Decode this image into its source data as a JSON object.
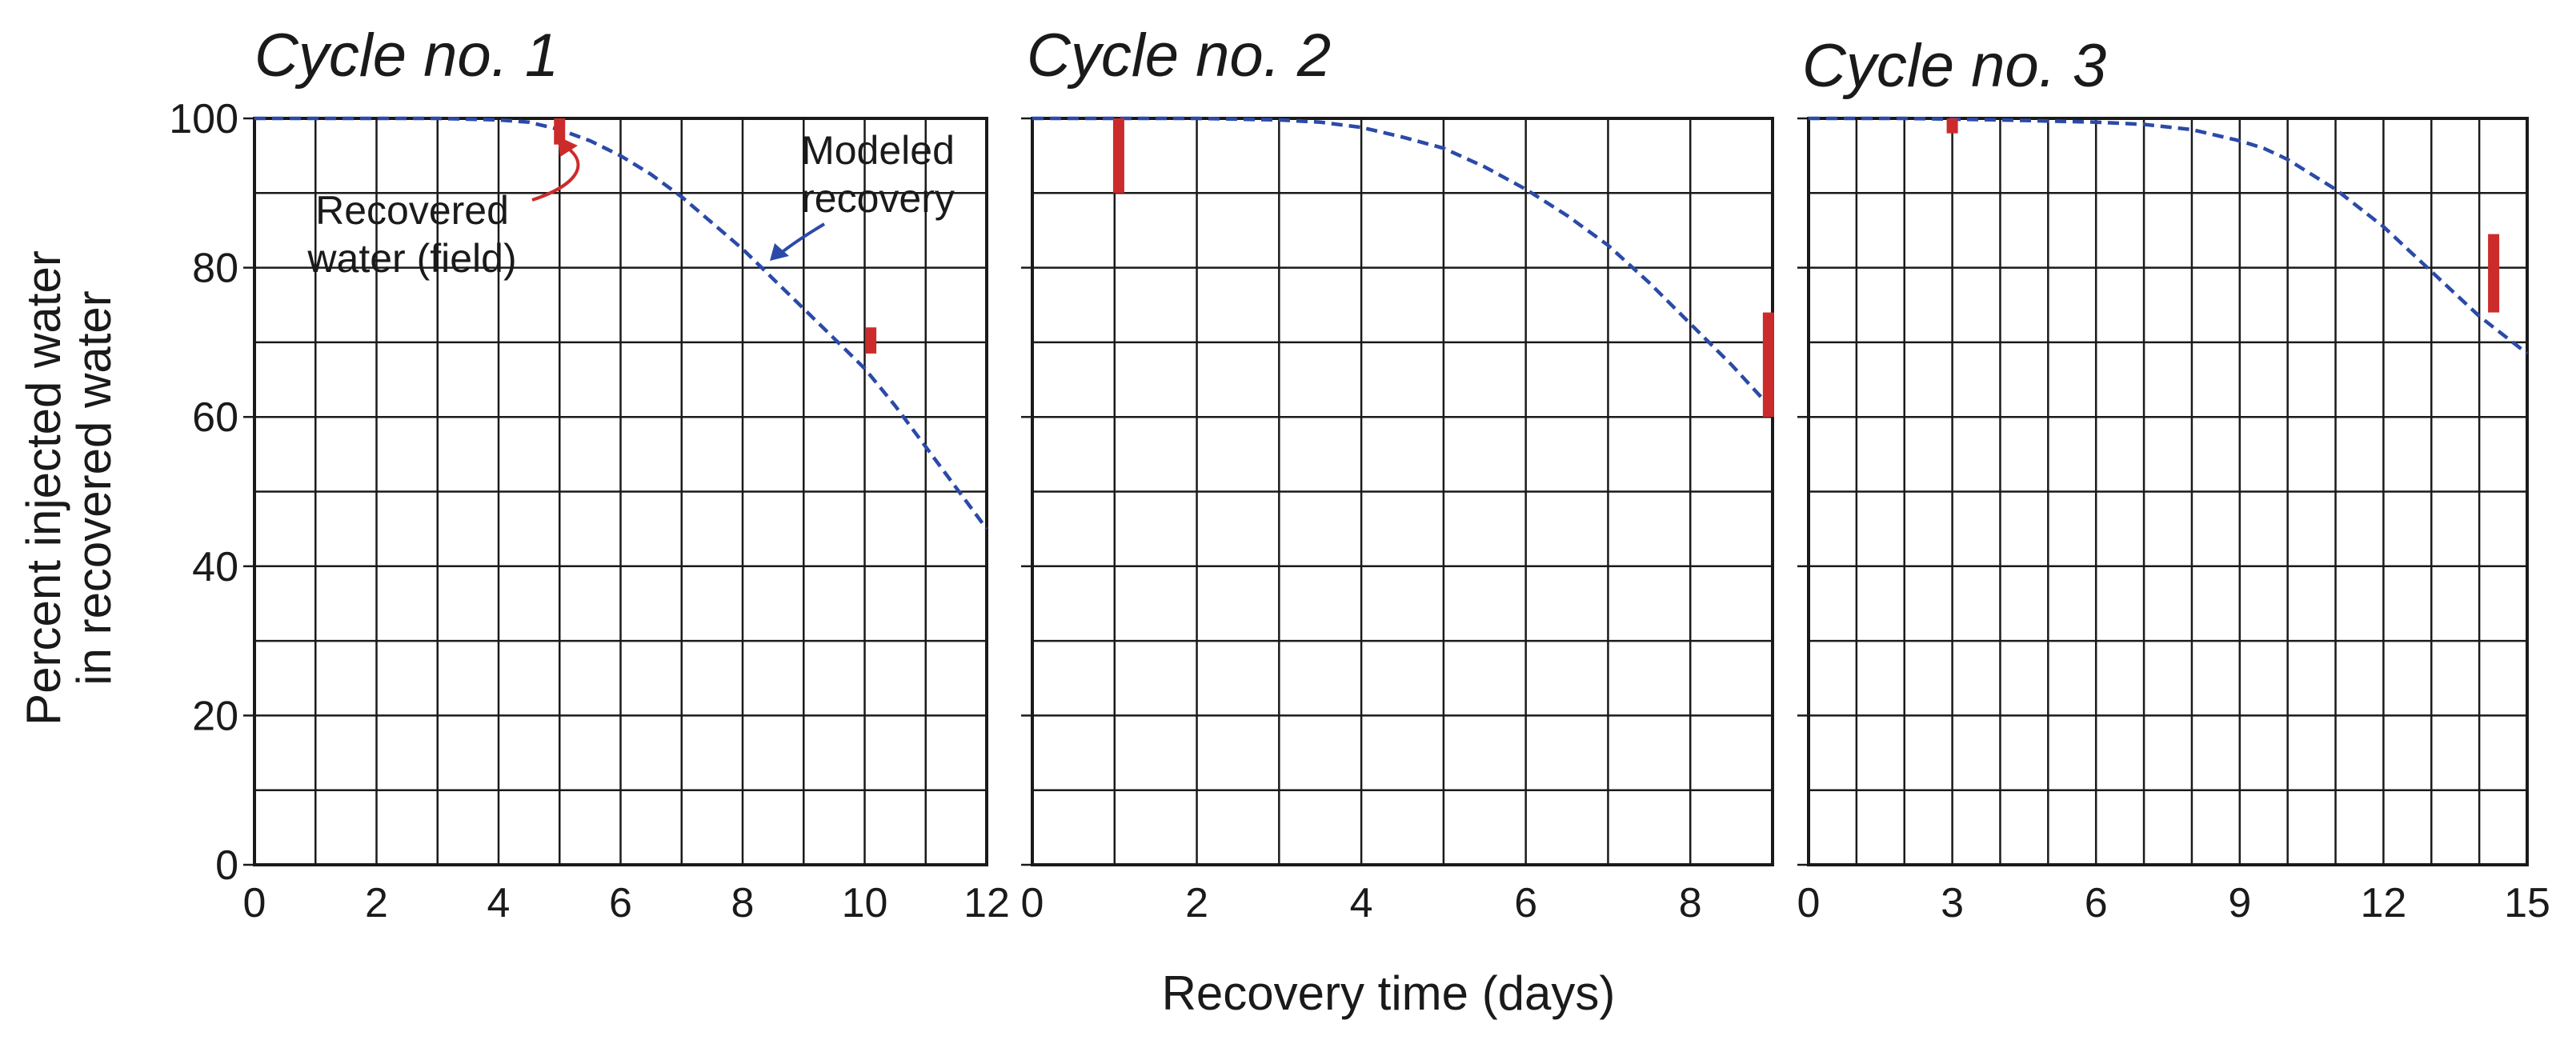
{
  "figure": {
    "ylabel_line1": "Percent injected water",
    "ylabel_line2": "in recovered water",
    "xlabel": "Recovery time (days)",
    "annotations": {
      "recovered_line1": "Recovered",
      "recovered_line2": "water (field)",
      "modeled_line1": "Modeled",
      "modeled_line2": "recovery"
    },
    "colors": {
      "model": "#2b4aa8",
      "field": "#cc2b2b",
      "grid": "#1a1a1a"
    }
  },
  "chart_data": [
    {
      "type": "line",
      "title": "Cycle no. 1",
      "xlim": [
        0,
        12
      ],
      "ylim": [
        0,
        100
      ],
      "x_ticks": [
        0,
        2,
        4,
        6,
        8,
        10,
        12
      ],
      "x_tick_labels": [
        "0",
        "2",
        "4",
        "6",
        "8",
        "10",
        "12"
      ],
      "y_ticks": [
        0,
        20,
        40,
        60,
        80,
        100
      ],
      "y_tick_labels": [
        "0",
        "20",
        "40",
        "60",
        "80",
        "100"
      ],
      "x_grid_step": 1,
      "y_grid_step": 10,
      "grid": true,
      "modeled": {
        "x": [
          0,
          1,
          2,
          3,
          4,
          4.5,
          5,
          5.5,
          6,
          6.5,
          7,
          7.5,
          8,
          8.5,
          9,
          9.5,
          10,
          10.5,
          11,
          11.5,
          12
        ],
        "y": [
          100,
          100,
          100,
          100,
          99.8,
          99.5,
          98.5,
          97,
          95,
          92.5,
          89.5,
          86,
          82.5,
          78.5,
          74.5,
          70.5,
          66.5,
          61.5,
          56,
          50.5,
          45
        ]
      },
      "field": [
        {
          "x": 5,
          "y_low": 96.5,
          "y_high": 100
        },
        {
          "x": 10.1,
          "y_low": 68.5,
          "y_high": 72
        }
      ]
    },
    {
      "type": "line",
      "title": "Cycle no. 2",
      "xlim": [
        0,
        9
      ],
      "ylim": [
        0,
        100
      ],
      "x_ticks": [
        0,
        2,
        4,
        6,
        8
      ],
      "x_tick_labels": [
        "0",
        "2",
        "4",
        "6",
        "8"
      ],
      "y_ticks": [
        0,
        20,
        40,
        60,
        80,
        100
      ],
      "y_tick_labels": [],
      "x_grid_step": 1,
      "y_grid_step": 10,
      "grid": true,
      "modeled": {
        "x": [
          0,
          1,
          2,
          3,
          3.5,
          4,
          4.5,
          5,
          5.5,
          6,
          6.5,
          7,
          7.5,
          8,
          8.5,
          9
        ],
        "y": [
          100,
          100,
          100,
          99.8,
          99.5,
          98.8,
          97.5,
          96,
          93.5,
          90.5,
          87,
          83,
          78,
          72.5,
          67,
          61
        ]
      },
      "field": [
        {
          "x": 1.05,
          "y_low": 90,
          "y_high": 100
        },
        {
          "x": 8.95,
          "y_low": 60,
          "y_high": 74
        }
      ]
    },
    {
      "type": "line",
      "title": "Cycle no. 3",
      "xlim": [
        0,
        15
      ],
      "ylim": [
        0,
        100
      ],
      "x_ticks": [
        0,
        3,
        6,
        9,
        12,
        15
      ],
      "x_tick_labels": [
        "0",
        "3",
        "6",
        "9",
        "12",
        "15"
      ],
      "y_ticks": [
        0,
        20,
        40,
        60,
        80,
        100
      ],
      "y_tick_labels": [],
      "x_grid_step": 1,
      "y_grid_step": 10,
      "grid": true,
      "modeled": {
        "x": [
          0,
          2,
          4,
          6,
          7,
          8,
          9,
          9.5,
          10,
          10.5,
          11,
          11.5,
          12,
          12.5,
          13,
          13.5,
          14,
          14.5,
          15
        ],
        "y": [
          100,
          100,
          99.8,
          99.5,
          99.2,
          98.5,
          97,
          96,
          94.5,
          92.5,
          90.5,
          88,
          85.5,
          82.5,
          79.5,
          76.5,
          73.5,
          71,
          68.5
        ]
      },
      "field": [
        {
          "x": 3,
          "y_low": 98,
          "y_high": 100
        },
        {
          "x": 14.3,
          "y_low": 74,
          "y_high": 84.5
        }
      ]
    }
  ]
}
